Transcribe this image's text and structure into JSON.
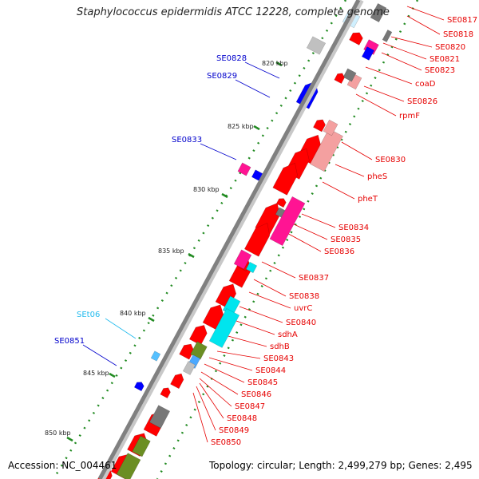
{
  "title": "Staphylococcus epidermidis ATCC 12228, complete genome",
  "footer": {
    "accession": "Accession: NC_004461",
    "topology": "Topology: circular; Length: 2,499,279 bp; Genes: 2,495"
  },
  "colors": {
    "backbone": "#808080",
    "cds": "#ff0000",
    "cds_light": "#f4a0a0",
    "blue": "#0000ff",
    "magenta": "#ff1493",
    "cyan": "#00e5ee",
    "olive": "#6b8e23",
    "gray": "#777777",
    "ruler_tick": "#228b22",
    "label_red": "#e60000",
    "label_blue": "#0000cc",
    "label_cyan": "#22bbee"
  },
  "ruler_ticks": [
    "820 kbp",
    "825 kbp",
    "830 kbp",
    "835 kbp",
    "840 kbp",
    "845 kbp",
    "850 kbp"
  ],
  "labels_right": [
    "SE0817",
    "SE0818",
    "SE0820",
    "SE0821",
    "SE0823",
    "coaD",
    "SE0826",
    "rpmF",
    "SE0830",
    "pheS",
    "pheT",
    "SE0834",
    "SE0835",
    "SE0836",
    "SE0837",
    "SE0838",
    "uvrC",
    "SE0840",
    "sdhA",
    "sdhB",
    "SE0843",
    "SE0844",
    "SE0845",
    "SE0846",
    "SE0847",
    "SE0848",
    "SE0849",
    "SE0850"
  ],
  "labels_left": [
    "SE0828",
    "SE0829",
    "SE0833",
    "SEt06",
    "SE0851"
  ]
}
